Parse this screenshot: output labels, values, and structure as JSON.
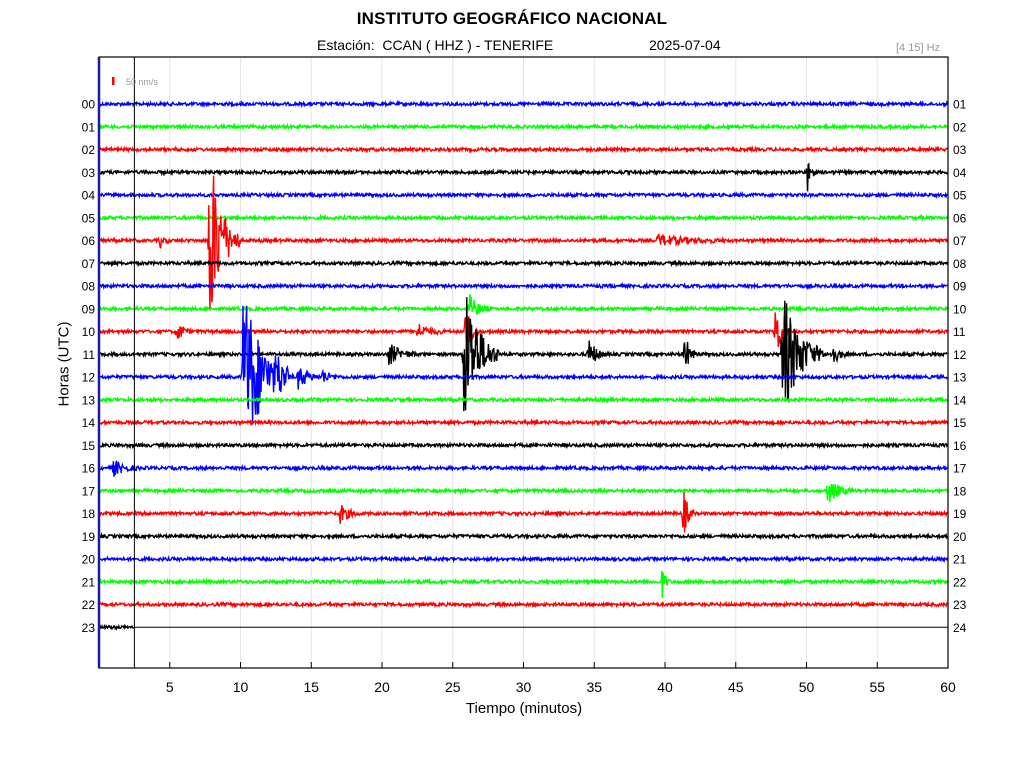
{
  "header": {
    "title": "INSTITUTO GEOGRÁFICO NACIONAL",
    "station_text": "Estación:  CCAN ( HHZ ) - TENERIFE",
    "date": "2025-07-04",
    "filter": "[4 15] Hz"
  },
  "chart_data": {
    "type": "line",
    "title": "INSTITUTO GEOGRÁFICO NACIONAL",
    "xlabel": "Tiempo (minutos)",
    "ylabel": "Horas (UTC)",
    "xlim": [
      0,
      60
    ],
    "x_ticks": [
      "5",
      "10",
      "15",
      "20",
      "25",
      "30",
      "35",
      "40",
      "45",
      "50",
      "55",
      "60"
    ],
    "y_ticks_left": [
      "00",
      "01",
      "02",
      "03",
      "04",
      "05",
      "06",
      "07",
      "08",
      "09",
      "10",
      "11",
      "12",
      "13",
      "14",
      "15",
      "16",
      "17",
      "18",
      "19",
      "20",
      "21",
      "22",
      "23"
    ],
    "y_ticks_right": [
      "01",
      "02",
      "03",
      "04",
      "05",
      "06",
      "07",
      "08",
      "09",
      "10",
      "11",
      "12",
      "13",
      "14",
      "15",
      "16",
      "17",
      "18",
      "19",
      "20",
      "21",
      "22",
      "23",
      "24"
    ],
    "grid": true,
    "scale_bar": "50 nm/s",
    "current_time_marker_min": 2.5,
    "trace_colors": [
      "#0000ff",
      "#00ff00",
      "#ff0000",
      "#000000"
    ],
    "series": [
      {
        "hour": "00",
        "color": "#0000ff",
        "end_min": 60,
        "events": []
      },
      {
        "hour": "01",
        "color": "#00ff00",
        "end_min": 60,
        "events": []
      },
      {
        "hour": "02",
        "color": "#ff0000",
        "end_min": 60,
        "events": []
      },
      {
        "hour": "03",
        "color": "#000000",
        "end_min": 60,
        "events": [
          {
            "t": 50.1,
            "amp": 1.1,
            "dur": 0.5
          }
        ]
      },
      {
        "hour": "04",
        "color": "#0000ff",
        "end_min": 60,
        "events": []
      },
      {
        "hour": "05",
        "color": "#00ff00",
        "end_min": 60,
        "events": []
      },
      {
        "hour": "06",
        "color": "#ff0000",
        "end_min": 60,
        "events": [
          {
            "t": 7.8,
            "amp": 4.2,
            "dur": 2.2
          },
          {
            "t": 4.3,
            "amp": 0.35,
            "dur": 0.7
          },
          {
            "t": 39.5,
            "amp": 0.25,
            "dur": 5
          }
        ]
      },
      {
        "hour": "07",
        "color": "#000000",
        "end_min": 60,
        "events": []
      },
      {
        "hour": "08",
        "color": "#0000ff",
        "end_min": 60,
        "events": []
      },
      {
        "hour": "09",
        "color": "#00ff00",
        "end_min": 60,
        "events": [
          {
            "t": 26.2,
            "amp": 0.6,
            "dur": 1.5
          }
        ]
      },
      {
        "hour": "10",
        "color": "#ff0000",
        "end_min": 60,
        "events": [
          {
            "t": 5.5,
            "amp": 0.5,
            "dur": 1
          },
          {
            "t": 25.9,
            "amp": 1.2,
            "dur": 1
          },
          {
            "t": 22.5,
            "amp": 0.35,
            "dur": 2
          },
          {
            "t": 47.8,
            "amp": 1.6,
            "dur": 0.9
          }
        ]
      },
      {
        "hour": "11",
        "color": "#000000",
        "end_min": 60,
        "events": [
          {
            "t": 25.8,
            "amp": 3.5,
            "dur": 2.5
          },
          {
            "t": 20.5,
            "amp": 0.5,
            "dur": 2
          },
          {
            "t": 34.6,
            "amp": 0.7,
            "dur": 1.3
          },
          {
            "t": 41.4,
            "amp": 0.9,
            "dur": 0.9
          },
          {
            "t": 48.3,
            "amp": 3,
            "dur": 3
          },
          {
            "t": 51.8,
            "amp": 0.5,
            "dur": 1.2
          }
        ]
      },
      {
        "hour": "12",
        "color": "#0000ff",
        "end_min": 60,
        "events": [
          {
            "t": 10.2,
            "amp": 4.3,
            "dur": 3.2
          },
          {
            "t": 12.5,
            "amp": 0.8,
            "dur": 1.2
          },
          {
            "t": 14.1,
            "amp": 0.6,
            "dur": 1.5
          },
          {
            "t": 15.8,
            "amp": 0.3,
            "dur": 1.2
          }
        ]
      },
      {
        "hour": "13",
        "color": "#00ff00",
        "end_min": 60,
        "events": []
      },
      {
        "hour": "14",
        "color": "#ff0000",
        "end_min": 60,
        "events": []
      },
      {
        "hour": "15",
        "color": "#000000",
        "end_min": 60,
        "events": []
      },
      {
        "hour": "16",
        "color": "#0000ff",
        "end_min": 60,
        "events": [
          {
            "t": 1.0,
            "amp": 0.35,
            "dur": 2
          }
        ]
      },
      {
        "hour": "17",
        "color": "#00ff00",
        "end_min": 60,
        "events": [
          {
            "t": 51.5,
            "amp": 0.6,
            "dur": 1.8
          }
        ]
      },
      {
        "hour": "18",
        "color": "#ff0000",
        "end_min": 60,
        "events": [
          {
            "t": 17.0,
            "amp": 0.45,
            "dur": 1.5
          },
          {
            "t": 41.3,
            "amp": 1.1,
            "dur": 0.8
          }
        ]
      },
      {
        "hour": "19",
        "color": "#000000",
        "end_min": 60,
        "events": []
      },
      {
        "hour": "20",
        "color": "#0000ff",
        "end_min": 60,
        "events": []
      },
      {
        "hour": "21",
        "color": "#00ff00",
        "end_min": 60,
        "events": [
          {
            "t": 39.8,
            "amp": 0.7,
            "dur": 0.6
          }
        ]
      },
      {
        "hour": "22",
        "color": "#ff0000",
        "end_min": 60,
        "events": []
      },
      {
        "hour": "23",
        "color": "#000000",
        "end_min": 2.5,
        "events": []
      }
    ]
  }
}
